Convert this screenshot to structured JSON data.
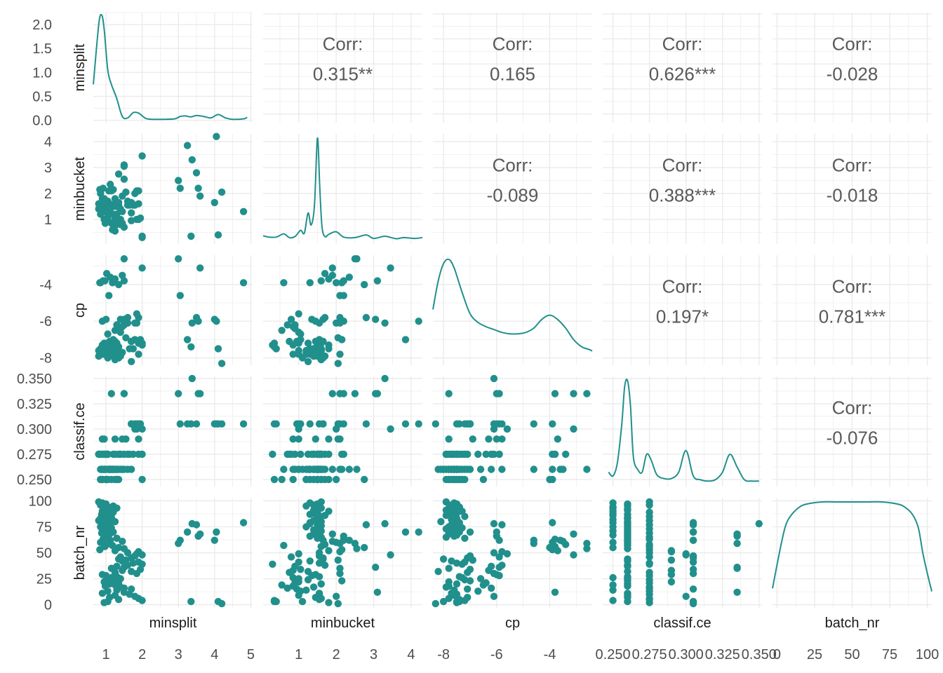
{
  "chart_data": {
    "type": "scatter-matrix",
    "variables": [
      "minsplit",
      "minbucket",
      "cp",
      "classif.ce",
      "batch_nr"
    ],
    "axes": {
      "minsplit": {
        "range": [
          0.65,
          5.05
        ],
        "ticks": [
          1,
          2,
          3,
          4,
          5
        ],
        "tick_labels": [
          "1",
          "2",
          "3",
          "4",
          "5"
        ]
      },
      "minbucket": {
        "range": [
          0.05,
          4.3
        ],
        "ticks": [
          1,
          2,
          3,
          4
        ],
        "tick_labels": [
          "1",
          "2",
          "3",
          "4"
        ]
      },
      "cp": {
        "range": [
          -8.4,
          -2.4
        ],
        "ticks": [
          -8,
          -6,
          -4
        ],
        "tick_labels": [
          "-8",
          "-6",
          "-4"
        ]
      },
      "classif.ce": {
        "range": [
          0.243,
          0.352
        ],
        "ticks": [
          0.25,
          0.275,
          0.3,
          0.325,
          0.35
        ],
        "tick_labels": [
          "0.250",
          "0.275",
          "0.300",
          "0.325",
          "0.350"
        ]
      },
      "batch_nr": {
        "range": [
          -3,
          103
        ],
        "ticks": [
          0,
          25,
          50,
          75,
          100
        ],
        "tick_labels": [
          "0",
          "25",
          "50",
          "75",
          "100"
        ]
      }
    },
    "diag_y_axis": {
      "range": [
        -0.05,
        2.25
      ],
      "ticks": [
        0,
        0.5,
        1,
        1.5,
        2
      ],
      "tick_labels": [
        "0.0",
        "0.5",
        "1.0",
        "1.5",
        "2.0"
      ]
    },
    "correlations": [
      {
        "row": 0,
        "col": 1,
        "label": "Corr:",
        "value": "0.315**"
      },
      {
        "row": 0,
        "col": 2,
        "label": "Corr:",
        "value": "0.165"
      },
      {
        "row": 0,
        "col": 3,
        "label": "Corr:",
        "value": "0.626***"
      },
      {
        "row": 0,
        "col": 4,
        "label": "Corr:",
        "value": "-0.028"
      },
      {
        "row": 1,
        "col": 2,
        "label": "Corr:",
        "value": "-0.089"
      },
      {
        "row": 1,
        "col": 3,
        "label": "Corr:",
        "value": "0.388***"
      },
      {
        "row": 1,
        "col": 4,
        "label": "Corr:",
        "value": "-0.018"
      },
      {
        "row": 2,
        "col": 3,
        "label": "Corr:",
        "value": "0.197*"
      },
      {
        "row": 2,
        "col": 4,
        "label": "Corr:",
        "value": "0.781***"
      },
      {
        "row": 3,
        "col": 4,
        "label": "Corr:",
        "value": "-0.076"
      }
    ],
    "densities": {
      "minsplit": {
        "x": [
          0.65,
          0.8,
          0.88,
          0.95,
          1.05,
          1.15,
          1.3,
          1.45,
          1.6,
          1.75,
          1.9,
          2.1,
          2.3,
          2.6,
          2.9,
          3.05,
          3.2,
          3.35,
          3.5,
          3.7,
          3.9,
          4.1,
          4.3,
          4.5,
          4.8,
          4.9
        ],
        "y": [
          0.75,
          2.0,
          2.2,
          1.9,
          1.05,
          0.75,
          0.45,
          0.08,
          0.05,
          0.16,
          0.15,
          0.04,
          0.02,
          0.02,
          0.03,
          0.08,
          0.09,
          0.07,
          0.1,
          0.08,
          0.05,
          0.12,
          0.05,
          0.02,
          0.03,
          0.06
        ]
      },
      "minbucket": {
        "x": [
          0.05,
          0.2,
          0.4,
          0.6,
          0.75,
          0.9,
          1.05,
          1.15,
          1.25,
          1.33,
          1.42,
          1.5,
          1.56,
          1.62,
          1.7,
          1.8,
          2.0,
          2.2,
          2.5,
          2.8,
          3.0,
          3.3,
          3.6,
          3.8,
          4.1,
          4.3
        ],
        "y": [
          0.15,
          0.1,
          0.1,
          0.22,
          0.08,
          0.12,
          0.35,
          0.25,
          1.0,
          0.55,
          1.3,
          3.8,
          2.0,
          0.5,
          0.12,
          0.2,
          0.3,
          0.1,
          0.08,
          0.18,
          0.05,
          0.13,
          0.04,
          0.08,
          0.05,
          0.08
        ]
      },
      "cp": {
        "x": [
          -8.4,
          -8.2,
          -8.0,
          -7.8,
          -7.6,
          -7.3,
          -7.0,
          -6.7,
          -6.4,
          -6.1,
          -5.8,
          -5.5,
          -5.2,
          -4.9,
          -4.6,
          -4.3,
          -4.0,
          -3.7,
          -3.4,
          -3.1,
          -2.8,
          -2.5,
          -2.4
        ],
        "y": [
          0.36,
          0.56,
          0.68,
          0.71,
          0.65,
          0.48,
          0.33,
          0.27,
          0.24,
          0.22,
          0.2,
          0.19,
          0.19,
          0.2,
          0.23,
          0.29,
          0.32,
          0.29,
          0.23,
          0.15,
          0.1,
          0.08,
          0.07
        ]
      },
      "classif.ce": {
        "x": [
          0.247,
          0.25,
          0.253,
          0.256,
          0.258,
          0.26,
          0.262,
          0.264,
          0.267,
          0.27,
          0.273,
          0.276,
          0.28,
          0.285,
          0.29,
          0.295,
          0.3,
          0.305,
          0.31,
          0.315,
          0.32,
          0.325,
          0.33,
          0.335,
          0.34,
          0.345,
          0.35
        ],
        "y": [
          0.08,
          0.05,
          0.15,
          0.45,
          0.75,
          0.8,
          0.6,
          0.2,
          0.1,
          0.08,
          0.22,
          0.18,
          0.06,
          0.03,
          0.03,
          0.08,
          0.25,
          0.05,
          0.02,
          0.01,
          0.02,
          0.08,
          0.22,
          0.12,
          0.02,
          0.01,
          0.01
        ]
      },
      "batch_nr": {
        "x": [
          -3,
          0,
          3,
          6,
          10,
          15,
          20,
          30,
          40,
          50,
          60,
          70,
          80,
          85,
          90,
          94,
          97,
          100,
          103
        ],
        "y": [
          0.15,
          0.38,
          0.6,
          0.78,
          0.88,
          0.95,
          0.98,
          1.0,
          1.0,
          1.0,
          1.0,
          1.0,
          0.98,
          0.95,
          0.88,
          0.75,
          0.5,
          0.3,
          0.12
        ]
      }
    },
    "points": [
      [
        0.8,
        1.6,
        -7.9,
        0.275,
        99
      ],
      [
        0.9,
        1.3,
        -7.6,
        0.25,
        98
      ],
      [
        1.0,
        1.5,
        -7.5,
        0.26,
        97
      ],
      [
        0.85,
        1.4,
        -7.7,
        0.275,
        96
      ],
      [
        1.2,
        1.2,
        -7.7,
        0.26,
        95
      ],
      [
        1.05,
        1.5,
        -7.4,
        0.25,
        94
      ],
      [
        1.3,
        1.6,
        -7.8,
        0.25,
        93
      ],
      [
        0.95,
        1.5,
        -7.6,
        0.26,
        92
      ],
      [
        1.1,
        1.4,
        -7.9,
        0.26,
        91
      ],
      [
        0.9,
        1.8,
        -7.3,
        0.25,
        90
      ],
      [
        1.2,
        1.5,
        -7.6,
        0.275,
        89
      ],
      [
        1.0,
        1.4,
        -7.5,
        0.25,
        88
      ],
      [
        0.88,
        1.3,
        -7.8,
        0.26,
        87
      ],
      [
        1.05,
        1.7,
        -7.9,
        0.25,
        86
      ],
      [
        0.95,
        1.6,
        -7.2,
        0.275,
        85
      ],
      [
        1.15,
        1.5,
        -7.6,
        0.26,
        84
      ],
      [
        0.85,
        1.5,
        -7.5,
        0.26,
        83
      ],
      [
        1.0,
        1.5,
        -7.7,
        0.25,
        82
      ],
      [
        0.8,
        1.4,
        -7.6,
        0.275,
        81
      ],
      [
        1.25,
        1.6,
        -8.1,
        0.26,
        80
      ],
      [
        0.9,
        1.5,
        -7.4,
        0.25,
        79
      ],
      [
        1.1,
        1.3,
        -7.5,
        0.26,
        78
      ],
      [
        1.0,
        1.5,
        -7.7,
        0.275,
        77
      ],
      [
        0.95,
        1.6,
        -7.6,
        0.26,
        76
      ],
      [
        0.85,
        1.2,
        -7.8,
        0.25,
        75
      ],
      [
        1.15,
        1.5,
        -7.3,
        0.26,
        74
      ],
      [
        1.05,
        1.5,
        -7.9,
        0.275,
        73
      ],
      [
        0.9,
        1.4,
        -7.5,
        0.26,
        72
      ],
      [
        1.0,
        1.6,
        -7.6,
        0.25,
        71
      ],
      [
        1.2,
        1.5,
        -7.4,
        0.26,
        70
      ],
      [
        0.88,
        1.5,
        -7.7,
        0.275,
        69
      ],
      [
        1.1,
        1.4,
        -7.8,
        0.26,
        68
      ],
      [
        1.0,
        1.5,
        -7.5,
        0.25,
        67
      ],
      [
        0.95,
        1.3,
        -7.6,
        0.26,
        66
      ],
      [
        1.05,
        1.6,
        -7.9,
        0.275,
        65
      ],
      [
        1.3,
        1.5,
        -7.2,
        0.26,
        64
      ],
      [
        0.92,
        2.2,
        -3.8,
        0.275,
        63
      ],
      [
        1.12,
        2.35,
        -3.6,
        0.26,
        62
      ],
      [
        1.45,
        1.9,
        -3.5,
        0.26,
        61
      ],
      [
        0.85,
        2.0,
        -3.9,
        0.25,
        60
      ],
      [
        1.08,
        2.1,
        -4.6,
        0.26,
        59
      ],
      [
        1.02,
        1.7,
        -3.4,
        0.275,
        58
      ],
      [
        1.18,
        0.6,
        -3.9,
        0.26,
        57
      ],
      [
        0.97,
        1.6,
        -3.8,
        0.275,
        56
      ],
      [
        1.35,
        2.75,
        -4.0,
        0.25,
        55
      ],
      [
        1.5,
        2.55,
        -2.6,
        0.26,
        54
      ],
      [
        0.83,
        2.15,
        -3.9,
        0.275,
        53
      ],
      [
        1.25,
        1.8,
        -3.7,
        0.29,
        52
      ],
      [
        1.9,
        2.1,
        -5.8,
        0.29,
        51
      ],
      [
        1.6,
        1.55,
        -6.1,
        0.275,
        50
      ],
      [
        1.85,
        1.0,
        -5.6,
        0.3,
        49
      ],
      [
        2.0,
        3.45,
        -3.1,
        0.3,
        48
      ],
      [
        1.8,
        1.55,
        -7.0,
        0.305,
        47
      ],
      [
        1.4,
        0.8,
        -5.9,
        0.275,
        46
      ],
      [
        1.7,
        1.65,
        -7.1,
        0.305,
        45
      ],
      [
        1.35,
        1.65,
        -8.0,
        0.26,
        44
      ],
      [
        1.55,
        2.05,
        -6.9,
        0.29,
        43
      ],
      [
        1.45,
        1.3,
        -7.7,
        0.26,
        42
      ],
      [
        1.9,
        1.0,
        -7.2,
        0.305,
        41
      ],
      [
        1.75,
        1.55,
        -7.5,
        0.275,
        40
      ],
      [
        2.0,
        0.3,
        -7.3,
        0.275,
        39
      ],
      [
        1.6,
        1.7,
        -5.8,
        0.26,
        38
      ],
      [
        1.3,
        0.9,
        -6.2,
        0.26,
        37
      ],
      [
        1.5,
        3.05,
        -5.9,
        0.335,
        36
      ],
      [
        1.15,
        2.1,
        -7.8,
        0.335,
        35
      ],
      [
        1.95,
        1.05,
        -7.0,
        0.305,
        34
      ],
      [
        1.45,
        0.85,
        -6.3,
        0.29,
        33
      ],
      [
        1.7,
        1.25,
        -8.2,
        0.26,
        32
      ],
      [
        1.25,
        0.75,
        -7.1,
        0.275,
        31
      ],
      [
        1.85,
        2.1,
        -6.1,
        0.305,
        30
      ],
      [
        0.9,
        1.45,
        -6.0,
        0.29,
        29
      ],
      [
        1.0,
        1.35,
        -5.9,
        0.275,
        28
      ],
      [
        1.3,
        1.55,
        -7.4,
        0.26,
        27
      ],
      [
        1.15,
        0.85,
        -7.3,
        0.25,
        26
      ],
      [
        1.4,
        1.0,
        -6.6,
        0.26,
        25
      ],
      [
        1.05,
        1.25,
        -7.2,
        0.275,
        24
      ],
      [
        1.2,
        2.15,
        -7.0,
        0.26,
        23
      ],
      [
        0.95,
        1.0,
        -7.8,
        0.29,
        22
      ],
      [
        1.35,
        0.9,
        -6.4,
        0.275,
        21
      ],
      [
        1.1,
        1.6,
        -7.5,
        0.26,
        20
      ],
      [
        1.25,
        0.55,
        -6.5,
        0.25,
        19
      ],
      [
        0.98,
        0.85,
        -7.8,
        0.26,
        18
      ],
      [
        1.4,
        1.4,
        -7.9,
        0.275,
        17
      ],
      [
        1.5,
        0.7,
        -6.2,
        0.275,
        16
      ],
      [
        1.7,
        0.95,
        -7.1,
        0.305,
        15
      ],
      [
        1.3,
        1.2,
        -7.6,
        0.25,
        14
      ],
      [
        1.05,
        1.05,
        -6.7,
        0.275,
        13
      ],
      [
        1.5,
        3.1,
        -3.8,
        0.335,
        12
      ],
      [
        0.9,
        1.55,
        -7.7,
        0.26,
        11
      ],
      [
        1.65,
        1.55,
        -7.5,
        0.275,
        10
      ],
      [
        1.25,
        1.0,
        -7.6,
        0.26,
        9
      ],
      [
        1.8,
        2.0,
        -6.1,
        0.3,
        8
      ],
      [
        1.1,
        1.45,
        -7.1,
        0.26,
        7
      ],
      [
        1.9,
        1.6,
        -7.8,
        0.275,
        6
      ],
      [
        1.35,
        1.55,
        -7.4,
        0.275,
        5
      ],
      [
        2.0,
        0.35,
        -7.2,
        0.25,
        4
      ],
      [
        1.05,
        1.1,
        -8.0,
        0.26,
        3
      ],
      [
        0.95,
        1.8,
        -7.5,
        0.275,
        2
      ],
      [
        3.0,
        2.5,
        -2.6,
        0.335,
        59
      ],
      [
        3.05,
        2.2,
        -4.6,
        0.305,
        62
      ],
      [
        3.25,
        3.85,
        -7.0,
        0.305,
        70
      ],
      [
        3.35,
        0.35,
        -7.4,
        0.305,
        3
      ],
      [
        3.38,
        3.3,
        -6.1,
        0.35,
        78
      ],
      [
        3.5,
        2.8,
        -5.8,
        0.305,
        77
      ],
      [
        3.55,
        2.2,
        -6.0,
        0.335,
        66
      ],
      [
        3.6,
        1.9,
        -3.1,
        0.335,
        68
      ],
      [
        4.0,
        1.65,
        -5.9,
        0.305,
        62
      ],
      [
        4.05,
        4.2,
        -6.0,
        0.305,
        70
      ],
      [
        4.1,
        0.4,
        -7.5,
        0.305,
        3
      ],
      [
        4.2,
        2.05,
        -8.3,
        0.305,
        1
      ],
      [
        4.8,
        1.3,
        -3.9,
        0.305,
        79
      ]
    ],
    "title": "",
    "xlabel": "",
    "ylabel": ""
  },
  "colors": {
    "series": "#21908c",
    "grid": "#ebebeb",
    "axis_text": "#4d4d4d",
    "corr_text": "#595959",
    "label_text": "#1a1a1a"
  }
}
